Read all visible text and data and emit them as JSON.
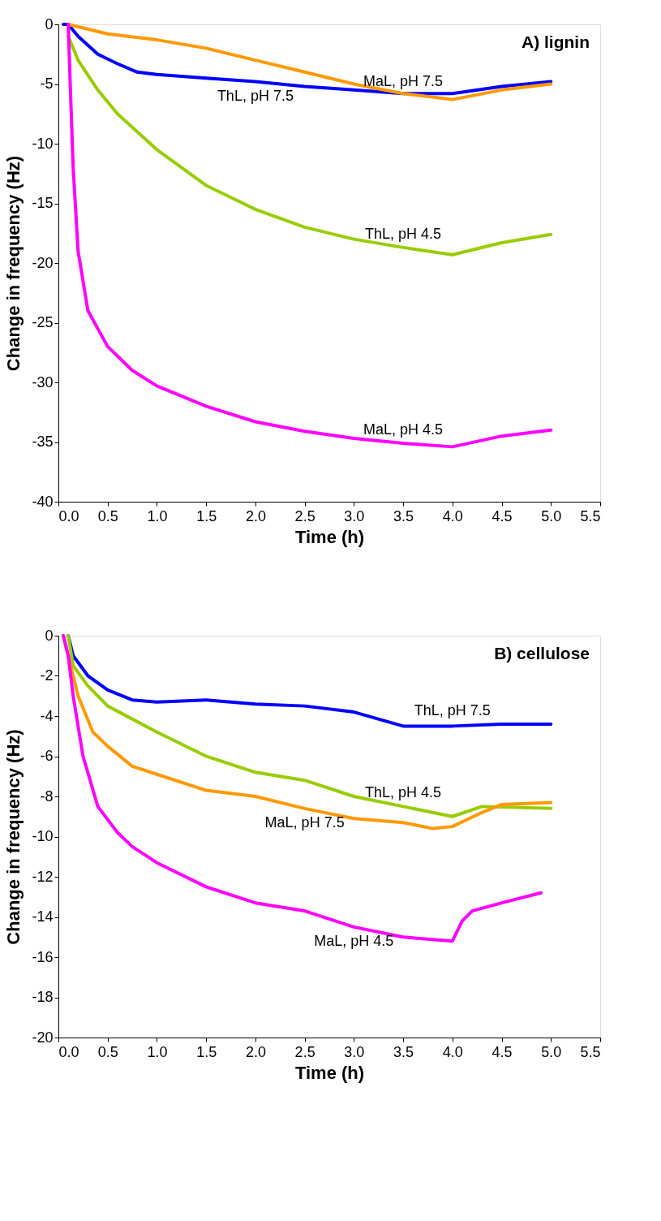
{
  "chart_data": [
    {
      "type": "line",
      "xlabel": "Time (h)",
      "ylabel": "Change in frequency (Hz)",
      "annotations": [
        "A) lignin"
      ],
      "xlim": [
        0,
        5.5
      ],
      "xticks": [
        {
          "value": 0,
          "label": "0.0"
        },
        {
          "value": 0.5,
          "label": "0.5"
        },
        {
          "value": 1,
          "label": "1.0"
        },
        {
          "value": 1.5,
          "label": "1.5"
        },
        {
          "value": 2,
          "label": "2.0"
        },
        {
          "value": 2.5,
          "label": "2.5"
        },
        {
          "value": 3,
          "label": "3.0"
        },
        {
          "value": 3.5,
          "label": "3.5"
        },
        {
          "value": 4,
          "label": "4.0"
        },
        {
          "value": 4.5,
          "label": "4.5"
        },
        {
          "value": 5,
          "label": "5.0"
        },
        {
          "value": 5.5,
          "label": "5.5"
        }
      ],
      "ylim": [
        -40,
        0
      ],
      "yticks": [
        -40,
        -35,
        -30,
        -25,
        -20,
        -15,
        -10,
        -5,
        0
      ],
      "grid": false,
      "legend": false,
      "marker": "none",
      "line_style": "solid",
      "series": [
        {
          "name": "ThL, pH 7.5",
          "color": "#0000ff",
          "x": [
            0.05,
            0.1,
            0.2,
            0.4,
            0.6,
            0.8,
            1.0,
            1.5,
            2.0,
            2.5,
            3.0,
            3.5,
            4.0,
            4.5,
            5.0
          ],
          "values": [
            0,
            0,
            -1,
            -2.5,
            -3.3,
            -4,
            -4.2,
            -4.5,
            -4.8,
            -5.2,
            -5.5,
            -5.8,
            -5.8,
            -5.2,
            -4.8
          ]
        },
        {
          "name": "MaL, pH 7.5",
          "color": "#ff9900",
          "x": [
            0.1,
            0.5,
            1.0,
            1.5,
            2.0,
            2.5,
            3.0,
            3.5,
            4.0,
            4.5,
            5.0
          ],
          "values": [
            0,
            -0.8,
            -1.3,
            -2,
            -3,
            -4,
            -5,
            -5.8,
            -6.3,
            -5.5,
            -5
          ]
        },
        {
          "name": "ThL, pH 4.5",
          "color": "#99cc00",
          "x": [
            0.1,
            0.2,
            0.4,
            0.6,
            0.8,
            1.0,
            1.5,
            2.0,
            2.5,
            3.0,
            3.5,
            4.0,
            4.5,
            5.0
          ],
          "values": [
            -1,
            -3,
            -5.5,
            -7.5,
            -9,
            -10.5,
            -13.5,
            -15.5,
            -17,
            -18,
            -18.7,
            -19.3,
            -18.3,
            -17.6
          ]
        },
        {
          "name": "MaL, pH 4.5",
          "color": "#ff00ff",
          "x": [
            0.1,
            0.12,
            0.15,
            0.2,
            0.3,
            0.5,
            0.75,
            1.0,
            1.5,
            2.0,
            2.5,
            3.0,
            3.5,
            4.0,
            4.5,
            5.0
          ],
          "values": [
            0,
            -5,
            -12,
            -19,
            -24,
            -27,
            -29,
            -30.3,
            -32,
            -33.3,
            -34.1,
            -34.7,
            -35.1,
            -35.4,
            -34.5,
            -34
          ]
        }
      ]
    },
    {
      "type": "line",
      "xlabel": "Time (h)",
      "ylabel": "Change in frequency (Hz)",
      "annotations": [
        "B) cellulose"
      ],
      "xlim": [
        0,
        5.5
      ],
      "xticks": [
        {
          "value": 0,
          "label": "0.0"
        },
        {
          "value": 0.5,
          "label": "0.5"
        },
        {
          "value": 1,
          "label": "1.0"
        },
        {
          "value": 1.5,
          "label": "1.5"
        },
        {
          "value": 2,
          "label": "2.0"
        },
        {
          "value": 2.5,
          "label": "2.5"
        },
        {
          "value": 3,
          "label": "3.0"
        },
        {
          "value": 3.5,
          "label": "3.5"
        },
        {
          "value": 4,
          "label": "4.0"
        },
        {
          "value": 4.5,
          "label": "4.5"
        },
        {
          "value": 5,
          "label": "5.0"
        },
        {
          "value": 5.5,
          "label": "5.5"
        }
      ],
      "ylim": [
        -20,
        0
      ],
      "yticks": [
        -20,
        -18,
        -16,
        -14,
        -12,
        -10,
        -8,
        -6,
        -4,
        -2,
        0
      ],
      "grid": false,
      "legend": false,
      "marker": "none",
      "line_style": "solid",
      "series": [
        {
          "name": "ThL, pH 7.5",
          "color": "#0000ff",
          "x": [
            0.1,
            0.15,
            0.3,
            0.5,
            0.75,
            1.0,
            1.5,
            2.0,
            2.5,
            3.0,
            3.5,
            4.0,
            4.5,
            5.0
          ],
          "values": [
            0,
            -1,
            -2,
            -2.7,
            -3.2,
            -3.3,
            -3.2,
            -3.4,
            -3.5,
            -3.8,
            -4.5,
            -4.5,
            -4.4,
            -4.4
          ]
        },
        {
          "name": "ThL, pH 4.5",
          "color": "#99cc00",
          "x": [
            0.1,
            0.15,
            0.3,
            0.5,
            1.0,
            1.5,
            2.0,
            2.5,
            3.0,
            3.5,
            4.0,
            4.3,
            5.0
          ],
          "values": [
            0,
            -1.5,
            -2.5,
            -3.5,
            -4.8,
            -6,
            -6.8,
            -7.2,
            -8,
            -8.5,
            -9,
            -8.5,
            -8.6
          ]
        },
        {
          "name": "MaL, pH 7.5",
          "color": "#ff9900",
          "x": [
            0.05,
            0.1,
            0.2,
            0.35,
            0.5,
            0.75,
            1.0,
            1.5,
            2.0,
            2.5,
            3.0,
            3.5,
            3.8,
            4.0,
            4.3,
            4.5,
            5.0
          ],
          "values": [
            0,
            -1,
            -3,
            -4.8,
            -5.5,
            -6.5,
            -6.9,
            -7.7,
            -8,
            -8.6,
            -9.1,
            -9.3,
            -9.6,
            -9.5,
            -8.8,
            -8.4,
            -8.3
          ]
        },
        {
          "name": "MaL, pH 4.5",
          "color": "#ff00ff",
          "x": [
            0.05,
            0.1,
            0.15,
            0.25,
            0.4,
            0.6,
            0.75,
            1.0,
            1.5,
            2.0,
            2.5,
            3.0,
            3.5,
            4.0,
            4.1,
            4.2,
            4.5,
            4.9
          ],
          "values": [
            0,
            -1,
            -3,
            -6,
            -8.5,
            -9.8,
            -10.5,
            -11.3,
            -12.5,
            -13.3,
            -13.7,
            -14.5,
            -15,
            -15.2,
            -14.2,
            -13.7,
            -13.3,
            -12.8
          ]
        }
      ]
    }
  ]
}
